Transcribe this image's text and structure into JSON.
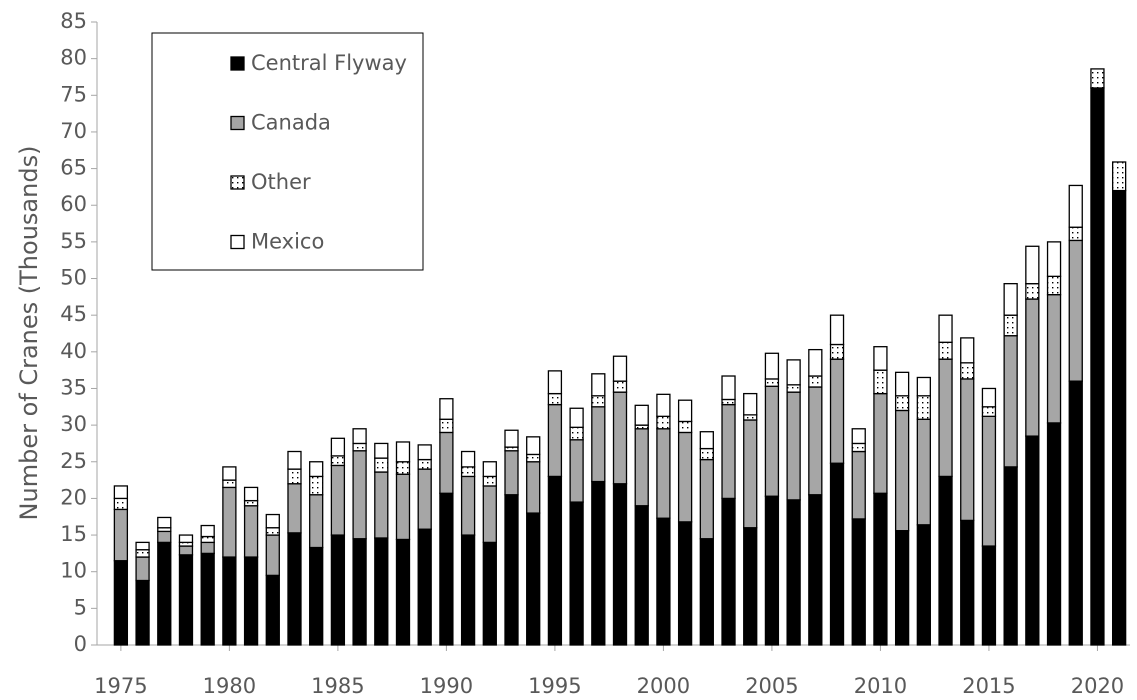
{
  "chart_data": {
    "type": "stacked-bar",
    "y_label": "Number of Cranes (Thousands)",
    "x": [
      1975,
      1976,
      1977,
      1978,
      1979,
      1980,
      1981,
      1982,
      1983,
      1984,
      1985,
      1986,
      1987,
      1988,
      1989,
      1990,
      1991,
      1992,
      1993,
      1994,
      1995,
      1996,
      1997,
      1998,
      1999,
      2000,
      2001,
      2002,
      2003,
      2004,
      2005,
      2006,
      2007,
      2008,
      2009,
      2010,
      2011,
      2012,
      2013,
      2014,
      2015,
      2016,
      2017,
      2018,
      2019,
      2020,
      2021
    ],
    "series": [
      {
        "name": "Central Flyway",
        "color": "#000000",
        "values": [
          11.5,
          8.8,
          14,
          12.3,
          12.5,
          12,
          12,
          9.5,
          15.3,
          13.3,
          15,
          14.5,
          14.6,
          14.4,
          15.8,
          20.7,
          15,
          14,
          20.5,
          18,
          23,
          19.5,
          22.3,
          22,
          19,
          17.3,
          16.8,
          14.5,
          20,
          16,
          20.3,
          19.8,
          20.5,
          24.8,
          17.2,
          20.7,
          15.6,
          16.4,
          23,
          17,
          13.5,
          24.3,
          28.5,
          30.3,
          36,
          76,
          62
        ]
      },
      {
        "name": "Canada",
        "color": "#a6a6a6",
        "values": [
          7,
          3.2,
          1.5,
          1.2,
          1.5,
          9.5,
          7,
          5.5,
          6.7,
          7.2,
          9.5,
          12,
          9,
          8.9,
          8.2,
          8.3,
          8,
          7.7,
          6,
          7,
          9.8,
          8.5,
          10.2,
          12.5,
          10.5,
          12.2,
          12.2,
          10.8,
          12.8,
          14.7,
          15,
          14.7,
          14.7,
          14.2,
          9.2,
          13.6,
          16.4,
          14.4,
          16,
          19.3,
          17.7,
          17.9,
          18.7,
          17.5,
          19.2,
          0,
          0
        ]
      },
      {
        "name": "Other",
        "color": "#ffffff",
        "pattern": "dotted",
        "values": [
          1.5,
          1,
          0.5,
          0.5,
          0.8,
          1,
          0.7,
          1,
          2,
          2.5,
          1.3,
          1,
          1.9,
          1.7,
          1.3,
          1.8,
          1.3,
          1.3,
          0.5,
          1,
          1.5,
          1.7,
          1.5,
          1.5,
          0.5,
          1.7,
          1.5,
          1.5,
          0.7,
          0.7,
          1,
          1,
          1.5,
          2,
          1.1,
          3.2,
          2,
          3.2,
          2.3,
          2.2,
          1.3,
          2.8,
          2.1,
          2.5,
          1.8,
          2.6,
          3.9
        ]
      },
      {
        "name": "Mexico",
        "color": "#ffffff",
        "values": [
          1.7,
          1,
          1.4,
          1,
          1.5,
          1.8,
          1.8,
          1.8,
          2.4,
          2,
          2.4,
          2,
          2,
          2.7,
          2,
          2.8,
          2.1,
          2,
          2.3,
          2.4,
          3.1,
          2.6,
          3,
          3.4,
          2.7,
          3,
          2.9,
          2.3,
          3.2,
          2.9,
          3.5,
          3.4,
          3.6,
          4,
          2,
          3.2,
          3.2,
          2.5,
          3.7,
          3.4,
          2.5,
          4.3,
          5.1,
          4.7,
          5.7,
          0,
          0
        ]
      }
    ],
    "xlim": [
      1973.9,
      2021.5
    ],
    "xticks": [
      1975,
      1980,
      1985,
      1990,
      1995,
      2000,
      2005,
      2010,
      2015,
      2020
    ],
    "ylim": [
      0,
      85
    ],
    "yticks": [
      0,
      5,
      10,
      15,
      20,
      25,
      30,
      35,
      40,
      45,
      50,
      55,
      60,
      65,
      70,
      75,
      80,
      85
    ],
    "grid": false,
    "legend": "upper-left"
  }
}
